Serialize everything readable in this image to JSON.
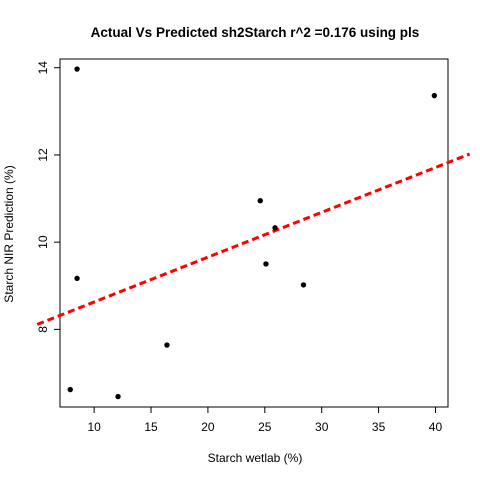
{
  "chart_data": {
    "type": "scatter",
    "title": "Actual Vs Predicted sh2Starch r^2 =0.176 using pls",
    "xlabel": "Starch wetlab (%)",
    "ylabel": "Starch NIR Prediction (%)",
    "xlim": [
      7.0,
      41.1
    ],
    "ylim": [
      6.22,
      14.2
    ],
    "x_ticks": [
      10,
      15,
      20,
      25,
      30,
      35,
      40
    ],
    "y_ticks": [
      8,
      10,
      12,
      14
    ],
    "grid": false,
    "points": [
      {
        "x": 8.5,
        "y": 13.97
      },
      {
        "x": 39.9,
        "y": 13.36
      },
      {
        "x": 24.6,
        "y": 10.95
      },
      {
        "x": 25.9,
        "y": 10.33
      },
      {
        "x": 25.1,
        "y": 9.5
      },
      {
        "x": 8.5,
        "y": 9.17
      },
      {
        "x": 28.4,
        "y": 9.02
      },
      {
        "x": 16.4,
        "y": 7.64
      },
      {
        "x": 7.9,
        "y": 6.62
      },
      {
        "x": 12.1,
        "y": 6.46
      }
    ],
    "fit_line": {
      "style": "dashed",
      "color": "#ff0000",
      "intercept": 7.6,
      "slope": 0.1028
    },
    "point_color": "#000000"
  }
}
